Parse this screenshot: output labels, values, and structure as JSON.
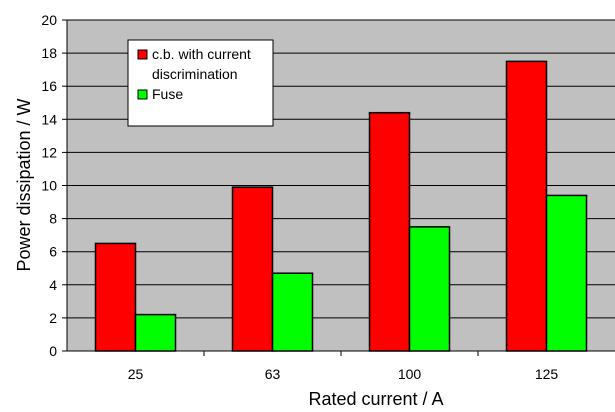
{
  "chart_data": {
    "type": "bar",
    "categories": [
      "25",
      "63",
      "100",
      "125"
    ],
    "series": [
      {
        "name": "c.b. with current discrimination",
        "values": [
          6.5,
          9.9,
          14.4,
          17.5
        ],
        "color": "#ff0000"
      },
      {
        "name": "Fuse",
        "values": [
          2.2,
          4.7,
          7.5,
          9.4
        ],
        "color": "#00ff00"
      }
    ],
    "title": "",
    "xlabel": "Rated current / A",
    "ylabel": "Power dissipation / W",
    "ylim": [
      0,
      20
    ],
    "yticks": [
      "0",
      "2",
      "4",
      "6",
      "8",
      "10",
      "12",
      "14",
      "16",
      "18",
      "20"
    ],
    "grid": true,
    "plot_background": "#c0c0c0",
    "legend": {
      "placement": "top-left",
      "entries": [
        {
          "lines": [
            "c.b. with current",
            "discrimination"
          ],
          "color": "#ff0000"
        },
        {
          "lines": [
            "Fuse"
          ],
          "color": "#00ff00"
        }
      ]
    }
  }
}
